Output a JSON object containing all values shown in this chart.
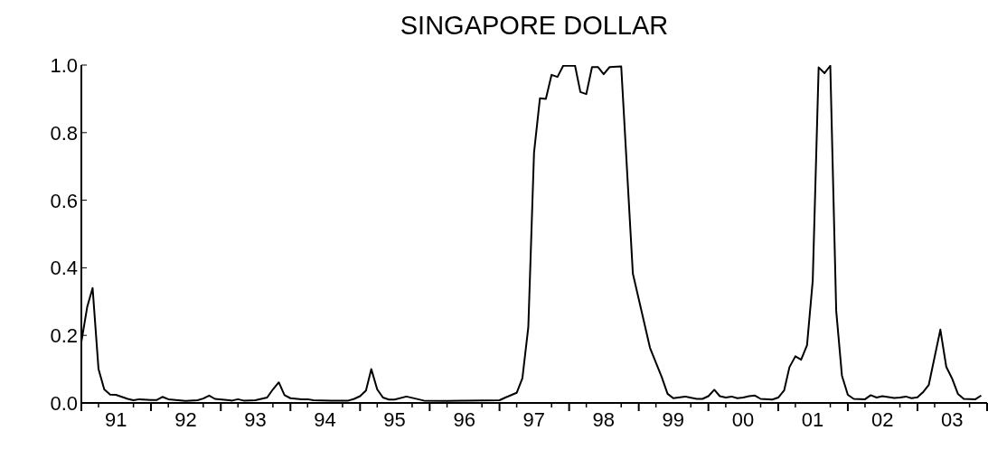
{
  "chart_data": {
    "type": "line",
    "title": "SINGAPORE DOLLAR",
    "xlim": [
      "1991-01",
      "2004-01"
    ],
    "xticks": [
      {
        "value": "1991-01",
        "label": null
      },
      {
        "value": "1991-04",
        "label": null
      },
      {
        "value": "1991-07",
        "label": "91"
      },
      {
        "value": "1991-10",
        "label": null
      },
      {
        "value": "1992-01",
        "label": null
      },
      {
        "value": "1992-04",
        "label": null
      },
      {
        "value": "1992-07",
        "label": "92"
      },
      {
        "value": "1992-10",
        "label": null
      },
      {
        "value": "1993-01",
        "label": null
      },
      {
        "value": "1993-04",
        "label": null
      },
      {
        "value": "1993-07",
        "label": "93"
      },
      {
        "value": "1993-10",
        "label": null
      },
      {
        "value": "1994-01",
        "label": null
      },
      {
        "value": "1994-04",
        "label": null
      },
      {
        "value": "1994-07",
        "label": "94"
      },
      {
        "value": "1994-10",
        "label": null
      },
      {
        "value": "1995-01",
        "label": null
      },
      {
        "value": "1995-04",
        "label": null
      },
      {
        "value": "1995-07",
        "label": "95"
      },
      {
        "value": "1995-10",
        "label": null
      },
      {
        "value": "1996-01",
        "label": null
      },
      {
        "value": "1996-04",
        "label": null
      },
      {
        "value": "1996-07",
        "label": "96"
      },
      {
        "value": "1996-10",
        "label": null
      },
      {
        "value": "1997-01",
        "label": null
      },
      {
        "value": "1997-04",
        "label": null
      },
      {
        "value": "1997-07",
        "label": "97"
      },
      {
        "value": "1997-10",
        "label": null
      },
      {
        "value": "1998-01",
        "label": null
      },
      {
        "value": "1998-04",
        "label": null
      },
      {
        "value": "1998-07",
        "label": "98"
      },
      {
        "value": "1998-10",
        "label": null
      },
      {
        "value": "1999-01",
        "label": null
      },
      {
        "value": "1999-04",
        "label": null
      },
      {
        "value": "1999-07",
        "label": "99"
      },
      {
        "value": "1999-10",
        "label": null
      },
      {
        "value": "2000-01",
        "label": null
      },
      {
        "value": "2000-04",
        "label": null
      },
      {
        "value": "2000-07",
        "label": "00"
      },
      {
        "value": "2000-10",
        "label": null
      },
      {
        "value": "2001-01",
        "label": null
      },
      {
        "value": "2001-04",
        "label": null
      },
      {
        "value": "2001-07",
        "label": "01"
      },
      {
        "value": "2001-10",
        "label": null
      },
      {
        "value": "2002-01",
        "label": null
      },
      {
        "value": "2002-04",
        "label": null
      },
      {
        "value": "2002-07",
        "label": "02"
      },
      {
        "value": "2002-10",
        "label": null
      },
      {
        "value": "2003-01",
        "label": null
      },
      {
        "value": "2003-04",
        "label": null
      },
      {
        "value": "2003-07",
        "label": "03"
      },
      {
        "value": "2003-10",
        "label": null
      },
      {
        "value": "2004-01",
        "label": null
      }
    ],
    "ylim": [
      0,
      1
    ],
    "yticks": [
      {
        "value": 0,
        "label": "0.0"
      },
      {
        "value": 0.2,
        "label": "0.2"
      },
      {
        "value": 0.4,
        "label": "0.4"
      },
      {
        "value": 0.6,
        "label": "0.6"
      },
      {
        "value": 0.8,
        "label": "0.8"
      },
      {
        "value": 1,
        "label": "1.0"
      }
    ],
    "grid": false,
    "legend": false,
    "marker": "none",
    "line_style": "solid",
    "series": [
      {
        "color": "#000000",
        "x": [
          "1991-01",
          "1991-02",
          "1991-03",
          "1991-04",
          "1991-05",
          "1991-06",
          "1991-07",
          "1991-08",
          "1991-09",
          "1991-10",
          "1991-11",
          "1992-01",
          "1992-02",
          "1992-03",
          "1992-04",
          "1992-07",
          "1992-09",
          "1992-10",
          "1992-11",
          "1992-12",
          "1993-03",
          "1993-04",
          "1993-05",
          "1993-07",
          "1993-09",
          "1993-10",
          "1993-11",
          "1993-12",
          "1994-01",
          "1994-03",
          "1994-04",
          "1994-05",
          "1994-08",
          "1994-11",
          "1994-12",
          "1995-01",
          "1995-02",
          "1995-03",
          "1995-04",
          "1995-05",
          "1995-06",
          "1995-07",
          "1995-09",
          "1995-12",
          "1996-04",
          "1996-07",
          "1997-01",
          "1997-02",
          "1997-04",
          "1997-05",
          "1997-06",
          "1997-07",
          "1997-08",
          "1997-09",
          "1997-10",
          "1997-11",
          "1997-12",
          "1998-02",
          "1998-03",
          "1998-04",
          "1998-05",
          "1998-06",
          "1998-07",
          "1998-08",
          "1998-10",
          "1998-12",
          "1999-03",
          "1999-05",
          "1999-06",
          "1999-07",
          "1999-09",
          "1999-11",
          "1999-12",
          "2000-01",
          "2000-02",
          "2000-03",
          "2000-04",
          "2000-05",
          "2000-06",
          "2000-07",
          "2000-08",
          "2000-09",
          "2000-10",
          "2000-12",
          "2001-01",
          "2001-02",
          "2001-03",
          "2001-04",
          "2001-05",
          "2001-06",
          "2001-07",
          "2001-08",
          "2001-09",
          "2001-10",
          "2001-11",
          "2001-12",
          "2002-01",
          "2002-02",
          "2002-04",
          "2002-05",
          "2002-06",
          "2002-07",
          "2002-09",
          "2002-10",
          "2002-11",
          "2002-12",
          "2003-01",
          "2003-02",
          "2003-03",
          "2003-05",
          "2003-06",
          "2003-07",
          "2003-08",
          "2003-09",
          "2003-11",
          "2003-12"
        ],
        "values": [
          0.18,
          0.285,
          0.34,
          0.1,
          0.04,
          0.025,
          0.024,
          0.018,
          0.012,
          0.008,
          0.011,
          0.009,
          0.009,
          0.018,
          0.011,
          0.006,
          0.008,
          0.013,
          0.022,
          0.012,
          0.007,
          0.011,
          0.007,
          0.008,
          0.016,
          0.04,
          0.061,
          0.023,
          0.014,
          0.011,
          0.011,
          0.008,
          0.007,
          0.007,
          0.012,
          0.02,
          0.037,
          0.1,
          0.04,
          0.016,
          0.01,
          0.01,
          0.019,
          0.007,
          0.006,
          0.007,
          0.008,
          0.016,
          0.03,
          0.073,
          0.224,
          0.741,
          0.902,
          0.9,
          0.971,
          0.965,
          0.998,
          0.998,
          0.92,
          0.914,
          0.994,
          0.994,
          0.973,
          0.994,
          0.996,
          0.383,
          0.163,
          0.077,
          0.027,
          0.014,
          0.019,
          0.012,
          0.012,
          0.02,
          0.039,
          0.02,
          0.016,
          0.019,
          0.014,
          0.016,
          0.02,
          0.022,
          0.012,
          0.01,
          0.016,
          0.037,
          0.106,
          0.138,
          0.128,
          0.171,
          0.362,
          0.993,
          0.976,
          0.998,
          0.273,
          0.081,
          0.024,
          0.012,
          0.011,
          0.023,
          0.016,
          0.02,
          0.015,
          0.016,
          0.019,
          0.014,
          0.017,
          0.033,
          0.053,
          0.217,
          0.107,
          0.073,
          0.027,
          0.012,
          0.011,
          0.022
        ]
      }
    ]
  }
}
